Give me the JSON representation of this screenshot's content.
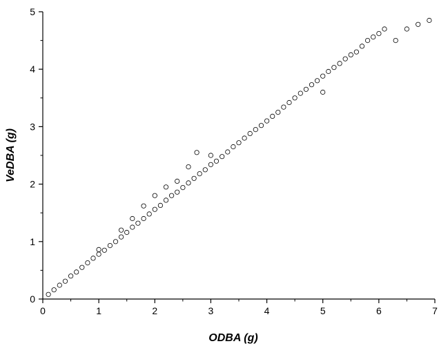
{
  "chart_data": {
    "type": "scatter",
    "title": "",
    "xlabel": "ODBA (g)",
    "ylabel": "VeDBA (g)",
    "xlim": [
      0,
      7
    ],
    "ylim": [
      0,
      5
    ],
    "x_ticks": [
      "0",
      "1",
      "2",
      "3",
      "4",
      "5",
      "6",
      "7"
    ],
    "y_ticks": [
      "0",
      "1",
      "2",
      "3",
      "4",
      "5"
    ],
    "grid": false,
    "marker": "open-circle",
    "marker_color": "#000000",
    "series": [
      {
        "points": [
          [
            0.1,
            0.08
          ],
          [
            0.2,
            0.16
          ],
          [
            0.3,
            0.24
          ],
          [
            0.4,
            0.31
          ],
          [
            0.5,
            0.4
          ],
          [
            0.6,
            0.47
          ],
          [
            0.7,
            0.55
          ],
          [
            0.8,
            0.63
          ],
          [
            0.9,
            0.71
          ],
          [
            1.0,
            0.78
          ],
          [
            1.0,
            0.86
          ],
          [
            1.1,
            0.85
          ],
          [
            1.2,
            0.93
          ],
          [
            1.3,
            1.0
          ],
          [
            1.4,
            1.08
          ],
          [
            1.4,
            1.2
          ],
          [
            1.5,
            1.16
          ],
          [
            1.6,
            1.25
          ],
          [
            1.6,
            1.4
          ],
          [
            1.7,
            1.32
          ],
          [
            1.8,
            1.4
          ],
          [
            1.8,
            1.62
          ],
          [
            1.9,
            1.48
          ],
          [
            2.0,
            1.56
          ],
          [
            2.0,
            1.8
          ],
          [
            2.1,
            1.63
          ],
          [
            2.2,
            1.72
          ],
          [
            2.2,
            1.95
          ],
          [
            2.3,
            1.8
          ],
          [
            2.4,
            1.86
          ],
          [
            2.4,
            2.05
          ],
          [
            2.5,
            1.94
          ],
          [
            2.6,
            2.02
          ],
          [
            2.6,
            2.3
          ],
          [
            2.7,
            2.1
          ],
          [
            2.75,
            2.55
          ],
          [
            2.8,
            2.18
          ],
          [
            2.9,
            2.25
          ],
          [
            3.0,
            2.34
          ],
          [
            3.0,
            2.5
          ],
          [
            3.1,
            2.4
          ],
          [
            3.2,
            2.48
          ],
          [
            3.3,
            2.56
          ],
          [
            3.4,
            2.65
          ],
          [
            3.5,
            2.72
          ],
          [
            3.6,
            2.8
          ],
          [
            3.7,
            2.88
          ],
          [
            3.8,
            2.95
          ],
          [
            3.9,
            3.02
          ],
          [
            4.0,
            3.1
          ],
          [
            4.1,
            3.18
          ],
          [
            4.2,
            3.25
          ],
          [
            4.3,
            3.34
          ],
          [
            4.4,
            3.42
          ],
          [
            4.5,
            3.5
          ],
          [
            4.6,
            3.58
          ],
          [
            4.7,
            3.65
          ],
          [
            4.8,
            3.73
          ],
          [
            4.9,
            3.8
          ],
          [
            5.0,
            3.88
          ],
          [
            5.0,
            3.6
          ],
          [
            5.1,
            3.96
          ],
          [
            5.2,
            4.03
          ],
          [
            5.3,
            4.1
          ],
          [
            5.4,
            4.18
          ],
          [
            5.5,
            4.25
          ],
          [
            5.6,
            4.3
          ],
          [
            5.7,
            4.4
          ],
          [
            5.8,
            4.5
          ],
          [
            5.9,
            4.56
          ],
          [
            6.0,
            4.62
          ],
          [
            6.1,
            4.7
          ],
          [
            6.3,
            4.5
          ],
          [
            6.5,
            4.7
          ],
          [
            6.7,
            4.78
          ],
          [
            6.9,
            4.85
          ]
        ]
      }
    ]
  }
}
